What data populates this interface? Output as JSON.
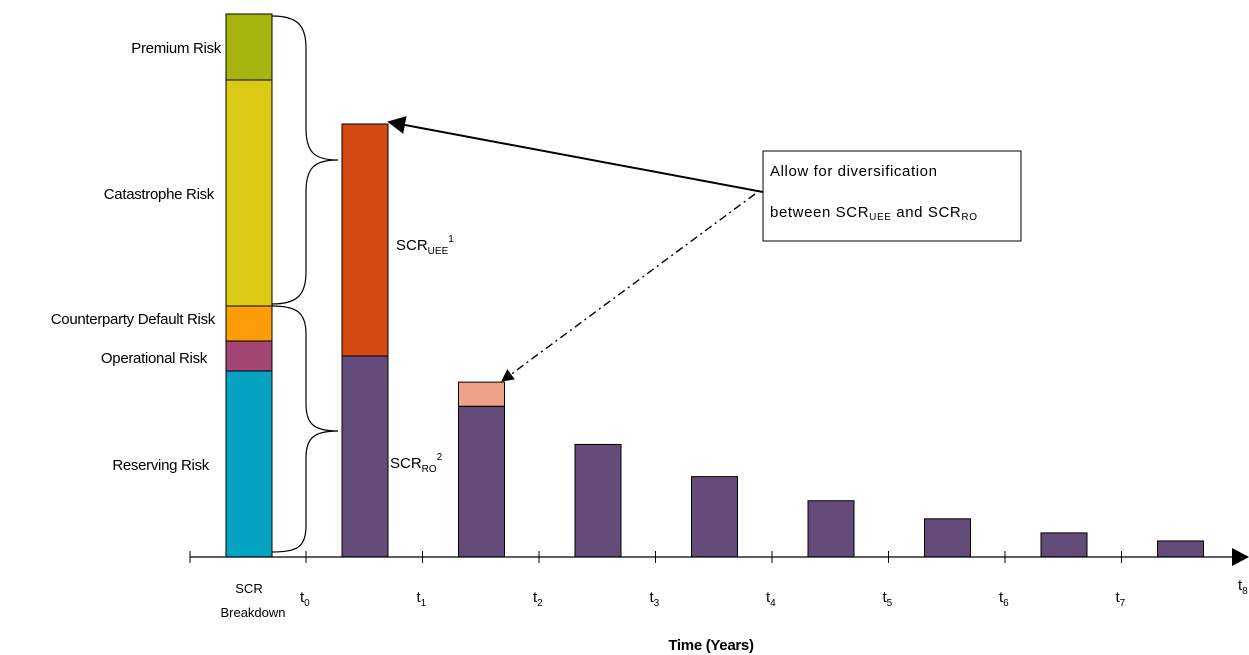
{
  "colors": {
    "premium": "#a8b510",
    "catastrophe": "#dcca14",
    "counterparty": "#fb9c08",
    "operational": "#a24673",
    "reserving": "#05a2c1",
    "scr_uee": "#d44a12",
    "scr_ro": "#644b7a",
    "diversification": "#eea388"
  },
  "breakdown": {
    "premium": "Premium Risk",
    "catastrophe": "Catastrophe Risk",
    "counterparty": "Counterparty Default Risk",
    "operational": "Operational Risk",
    "reserving": "Reserving Risk",
    "caption_line1": "SCR",
    "caption_line2": "Breakdown"
  },
  "scr_labels": {
    "uee_main": "SCR",
    "uee_sub": "UEE",
    "uee_sup": "1",
    "ro_main": "SCR",
    "ro_sub": "RO",
    "ro_sup": "2"
  },
  "note": {
    "line1": "Allow for diversification",
    "line2_a": "between SCR",
    "line2_sub1": "UEE",
    "line2_b": " and SCR",
    "line2_sub2": "RO"
  },
  "axis": {
    "title": "Time (Years)",
    "ticks": [
      {
        "main": "t",
        "sub": "0"
      },
      {
        "main": "t",
        "sub": "1"
      },
      {
        "main": "t",
        "sub": "2"
      },
      {
        "main": "t",
        "sub": "3"
      },
      {
        "main": "t",
        "sub": "4"
      },
      {
        "main": "t",
        "sub": "5"
      },
      {
        "main": "t",
        "sub": "6"
      },
      {
        "main": "t",
        "sub": "7"
      },
      {
        "main": "t",
        "sub": "8"
      }
    ]
  },
  "bars": [
    {
      "period": 0,
      "ro": 100,
      "uee": 100
    },
    {
      "period": 1,
      "ro": 75,
      "diversification": 12
    },
    {
      "period": 2,
      "ro": 56
    },
    {
      "period": 3,
      "ro": 40
    },
    {
      "period": 4,
      "ro": 28
    },
    {
      "period": 5,
      "ro": 19
    },
    {
      "period": 6,
      "ro": 12
    },
    {
      "period": 7,
      "ro": 8
    }
  ]
}
